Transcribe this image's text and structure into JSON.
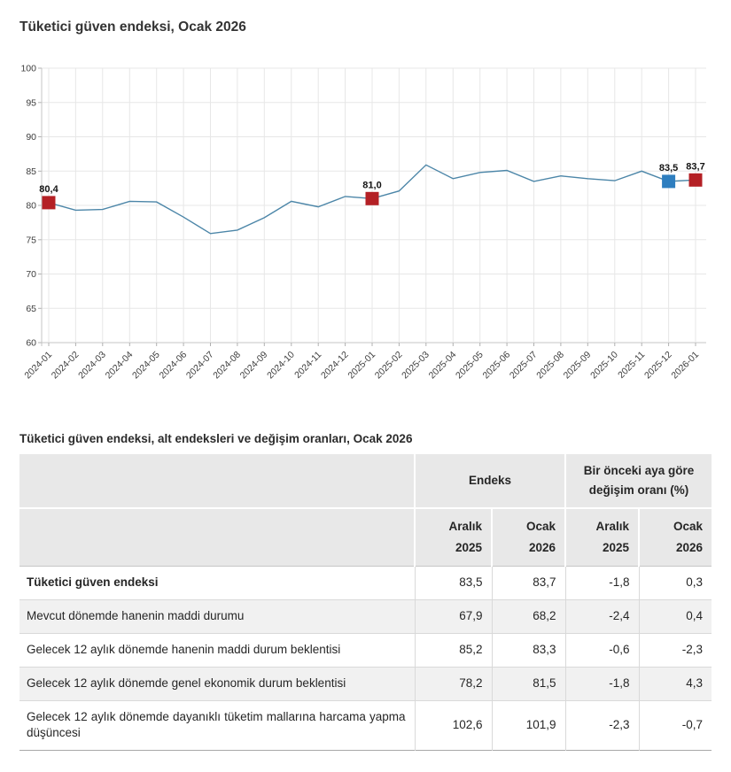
{
  "page": {
    "chart_title": "Tüketici güven endeksi, Ocak 2026",
    "table_title": "Tüketici güven endeksi, alt endeksleri ve değişim oranları, Ocak 2026"
  },
  "chart_data": {
    "type": "line",
    "title": "Tüketici güven endeksi, Ocak 2026",
    "x": [
      "2024-01",
      "2024-02",
      "2024-03",
      "2024-04",
      "2024-05",
      "2024-06",
      "2024-07",
      "2024-08",
      "2024-09",
      "2024-10",
      "2024-11",
      "2024-12",
      "2025-01",
      "2025-02",
      "2025-03",
      "2025-04",
      "2025-05",
      "2025-06",
      "2025-07",
      "2025-08",
      "2025-09",
      "2025-10",
      "2025-11",
      "2025-12",
      "2026-01"
    ],
    "values": [
      80.4,
      79.3,
      79.4,
      80.6,
      80.5,
      78.3,
      75.9,
      76.4,
      78.2,
      80.6,
      79.8,
      81.3,
      81.0,
      82.1,
      85.9,
      83.9,
      84.8,
      85.1,
      83.5,
      84.3,
      83.9,
      83.6,
      85.0,
      83.5,
      83.7
    ],
    "ylim": [
      60,
      100
    ],
    "ytick_step": 5,
    "grid": true,
    "legend": "none",
    "line_color": "#4c86a8",
    "grid_color": "#e7e7e7",
    "axis_color": "#c4c4c4",
    "tick_color": "#b0b0b0",
    "axis_label_color": "#3d3d3d",
    "data_label_color": "#141414",
    "marked_points": [
      {
        "x": "2024-01",
        "label": "80,4",
        "color": "#b42025"
      },
      {
        "x": "2025-01",
        "label": "81,0",
        "color": "#b42025"
      },
      {
        "x": "2025-12",
        "label": "83,5",
        "color": "#2e7ebf"
      },
      {
        "x": "2026-01",
        "label": "83,7",
        "color": "#b42025"
      }
    ]
  },
  "table": {
    "group_headers": [
      {
        "label": "Endeks"
      },
      {
        "label": "Bir önceki aya göre değişim oranı (%)"
      }
    ],
    "sub_headers": [
      [
        "Aralık",
        "2025"
      ],
      [
        "Ocak",
        "2026"
      ],
      [
        "Aralık",
        "2025"
      ],
      [
        "Ocak",
        "2026"
      ]
    ],
    "rows": [
      {
        "label": "Tüketici güven endeksi",
        "bold": true,
        "values": [
          "83,5",
          "83,7",
          "-1,8",
          "0,3"
        ]
      },
      {
        "label": "Mevcut dönemde hanenin maddi durumu",
        "bold": false,
        "values": [
          "67,9",
          "68,2",
          "-2,4",
          "0,4"
        ]
      },
      {
        "label": "Gelecek 12 aylık dönemde hanenin maddi durum beklentisi",
        "bold": false,
        "values": [
          "85,2",
          "83,3",
          "-0,6",
          "-2,3"
        ]
      },
      {
        "label": "Gelecek 12 aylık dönemde genel ekonomik durum beklentisi",
        "bold": false,
        "values": [
          "78,2",
          "81,5",
          "-1,8",
          "4,3"
        ]
      },
      {
        "label": "Gelecek 12 aylık dönemde dayanıklı tüketim mallarına harcama yapma düşüncesi",
        "bold": false,
        "values": [
          "102,6",
          "101,9",
          "-2,3",
          "-0,7"
        ]
      }
    ]
  },
  "ui_colors": {
    "header_bg": "#e8e8e8",
    "alt_row_bg": "#f1f1f1",
    "table_bottom_border": "#a8a8a8"
  }
}
